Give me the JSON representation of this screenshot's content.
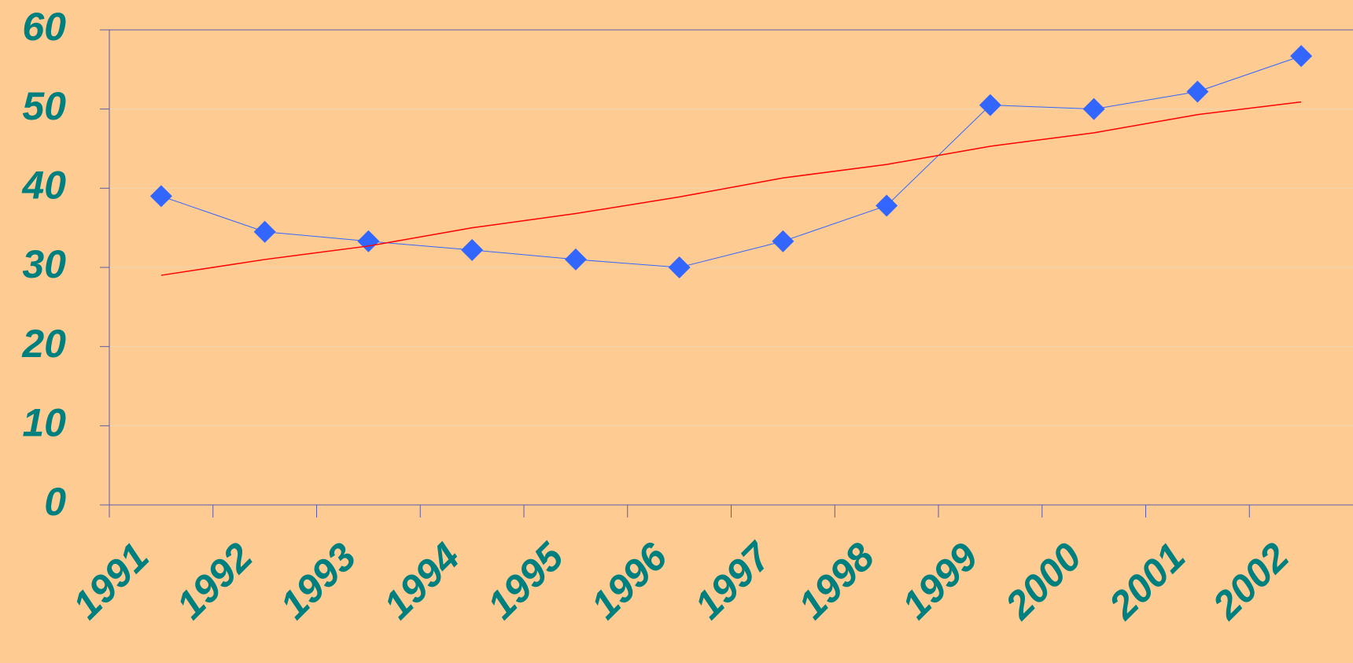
{
  "chart_data": {
    "type": "line",
    "categories": [
      "1991",
      "1992",
      "1993",
      "1994",
      "1995",
      "1996",
      "1997",
      "1998",
      "1999",
      "2000",
      "2001",
      "2002"
    ],
    "series": [
      {
        "color": "#3366ff",
        "marker": "diamond",
        "values": [
          39,
          34.5,
          33.3,
          32.2,
          31,
          30,
          33.3,
          37.8,
          50.5,
          50,
          52.2,
          56.7
        ]
      },
      {
        "color": "#ff0000",
        "marker": "none",
        "values": [
          29,
          31,
          32.7,
          35,
          36.8,
          38.9,
          41.3,
          43,
          45.3,
          47,
          49.3,
          50.9
        ]
      }
    ],
    "ylim": [
      0,
      60
    ],
    "yticks": [
      0,
      10,
      20,
      30,
      40,
      50,
      60
    ],
    "grid": true
  }
}
